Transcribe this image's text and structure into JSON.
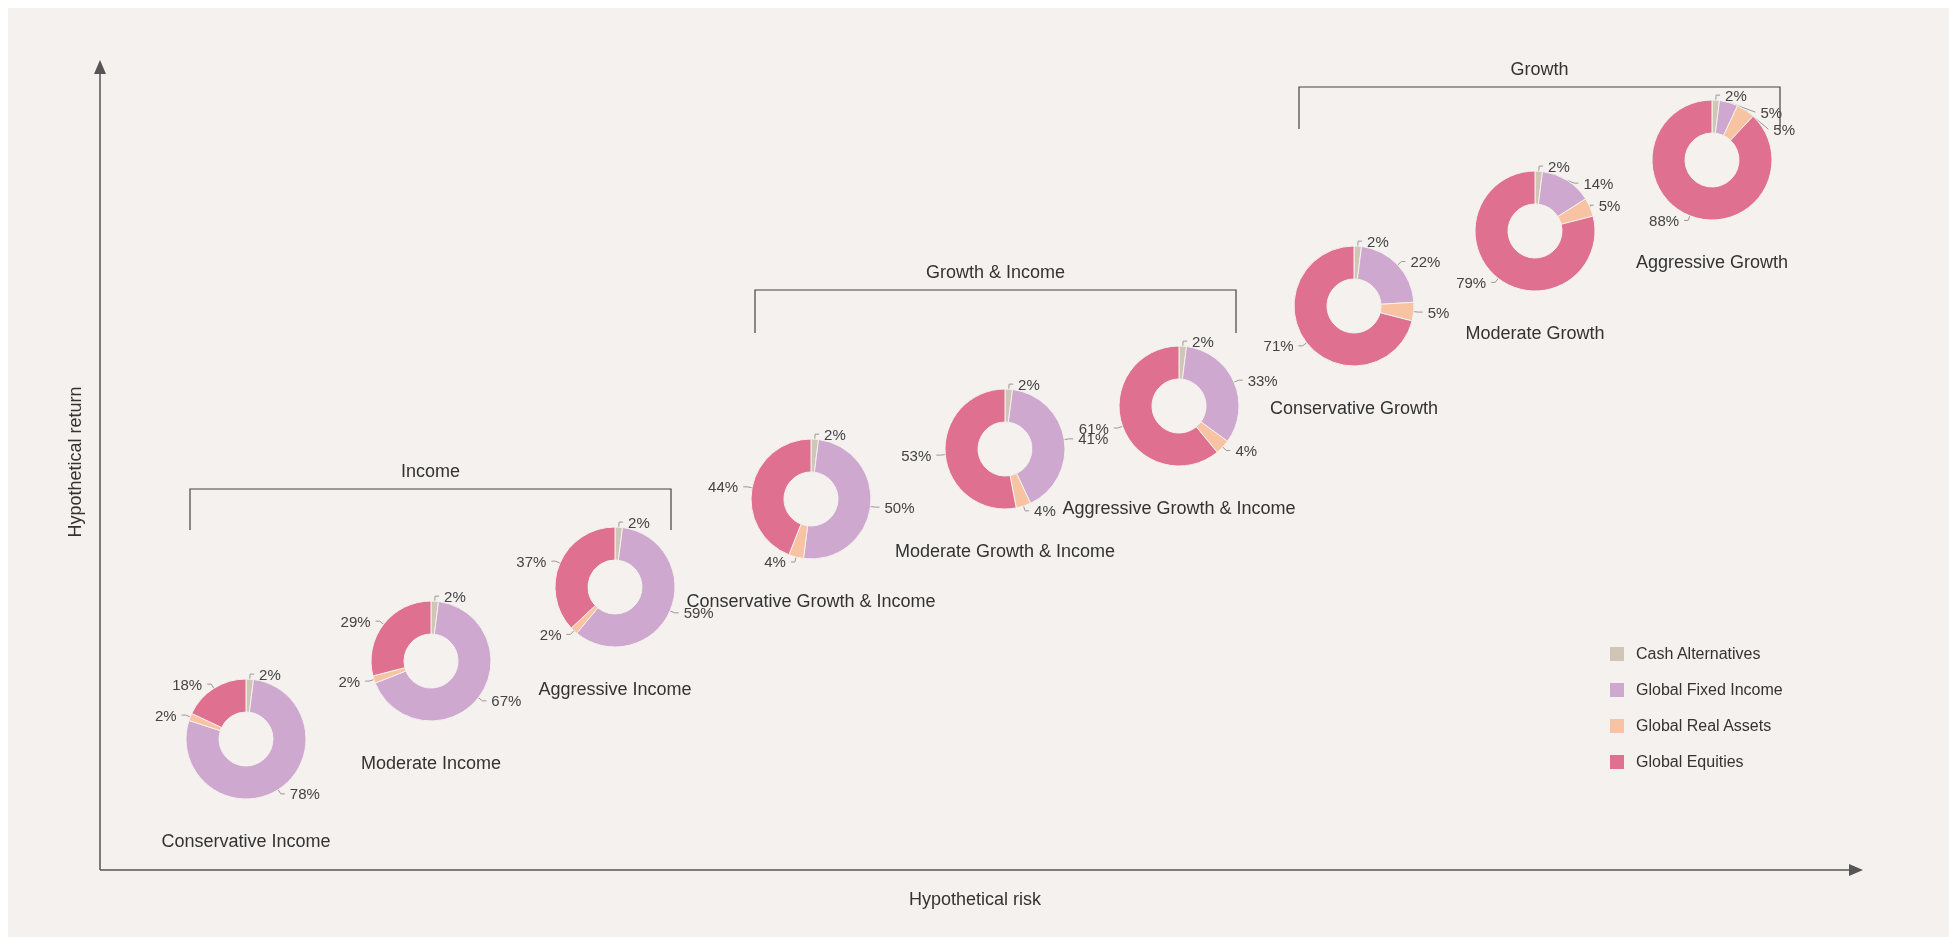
{
  "chart_data": [
    {
      "type": "other",
      "xlabel": "Hypothetical risk",
      "ylabel": "Hypothetical return",
      "annotations": [
        "Income",
        "Growth & Income",
        "Growth"
      ]
    },
    {
      "type": "donut",
      "title": "Conservative Income",
      "categories": [
        "Cash Alternatives",
        "Global Fixed Income",
        "Global Real Assets",
        "Global Equities"
      ],
      "values": [
        2,
        78,
        2,
        18
      ],
      "colors": [
        "#cfc6b5",
        "#cfa8cf",
        "#f7c3a3",
        "#e07090"
      ],
      "value_labels": [
        "2%",
        "78%",
        "2%",
        "18%"
      ],
      "legend": "right"
    },
    {
      "type": "donut",
      "title": "Moderate Income",
      "values": [
        2,
        67,
        2,
        29
      ],
      "colors": [
        "#cfc6b5",
        "#cfa8cf",
        "#f7c3a3",
        "#e07090"
      ],
      "value_labels": [
        "2%",
        "67%",
        "2%",
        "29%"
      ]
    },
    {
      "type": "donut",
      "title": "Aggressive Income",
      "values": [
        2,
        59,
        2,
        37
      ],
      "colors": [
        "#cfc6b5",
        "#cfa8cf",
        "#f7c3a3",
        "#e07090"
      ],
      "value_labels": [
        "2%",
        "59%",
        "2%",
        "37%"
      ]
    },
    {
      "type": "donut",
      "title": "Conservative Growth & Income",
      "values": [
        2,
        50,
        4,
        44
      ],
      "colors": [
        "#cfc6b5",
        "#cfa8cf",
        "#f7c3a3",
        "#e07090"
      ],
      "value_labels": [
        "2%",
        "50%",
        "4%",
        "44%"
      ]
    },
    {
      "type": "donut",
      "title": "Moderate Growth & Income",
      "values": [
        2,
        41,
        4,
        53
      ],
      "colors": [
        "#cfc6b5",
        "#cfa8cf",
        "#f7c3a3",
        "#e07090"
      ],
      "value_labels": [
        "2%",
        "41%",
        "4%",
        "53%"
      ]
    },
    {
      "type": "donut",
      "title": "Aggressive Growth & Income",
      "values": [
        2,
        33,
        4,
        61
      ],
      "colors": [
        "#cfc6b5",
        "#cfa8cf",
        "#f7c3a3",
        "#e07090"
      ],
      "value_labels": [
        "2%",
        "33%",
        "4%",
        "61%"
      ]
    },
    {
      "type": "donut",
      "title": "Conservative Growth",
      "values": [
        2,
        22,
        5,
        71
      ],
      "colors": [
        "#cfc6b5",
        "#cfa8cf",
        "#f7c3a3",
        "#e07090"
      ],
      "value_labels": [
        "2%",
        "22%",
        "5%",
        "71%"
      ]
    },
    {
      "type": "donut",
      "title": "Moderate Growth",
      "values": [
        2,
        14,
        5,
        79
      ],
      "colors": [
        "#cfc6b5",
        "#cfa8cf",
        "#f7c3a3",
        "#e07090"
      ],
      "value_labels": [
        "2%",
        "14%",
        "5%",
        "79%"
      ]
    },
    {
      "type": "donut",
      "title": "Aggressive Growth",
      "values": [
        2,
        5,
        5,
        88
      ],
      "colors": [
        "#cfc6b5",
        "#cfa8cf",
        "#f7c3a3",
        "#e07090"
      ],
      "value_labels": [
        "2%",
        "5%",
        "5%",
        "88%"
      ]
    }
  ]
}
